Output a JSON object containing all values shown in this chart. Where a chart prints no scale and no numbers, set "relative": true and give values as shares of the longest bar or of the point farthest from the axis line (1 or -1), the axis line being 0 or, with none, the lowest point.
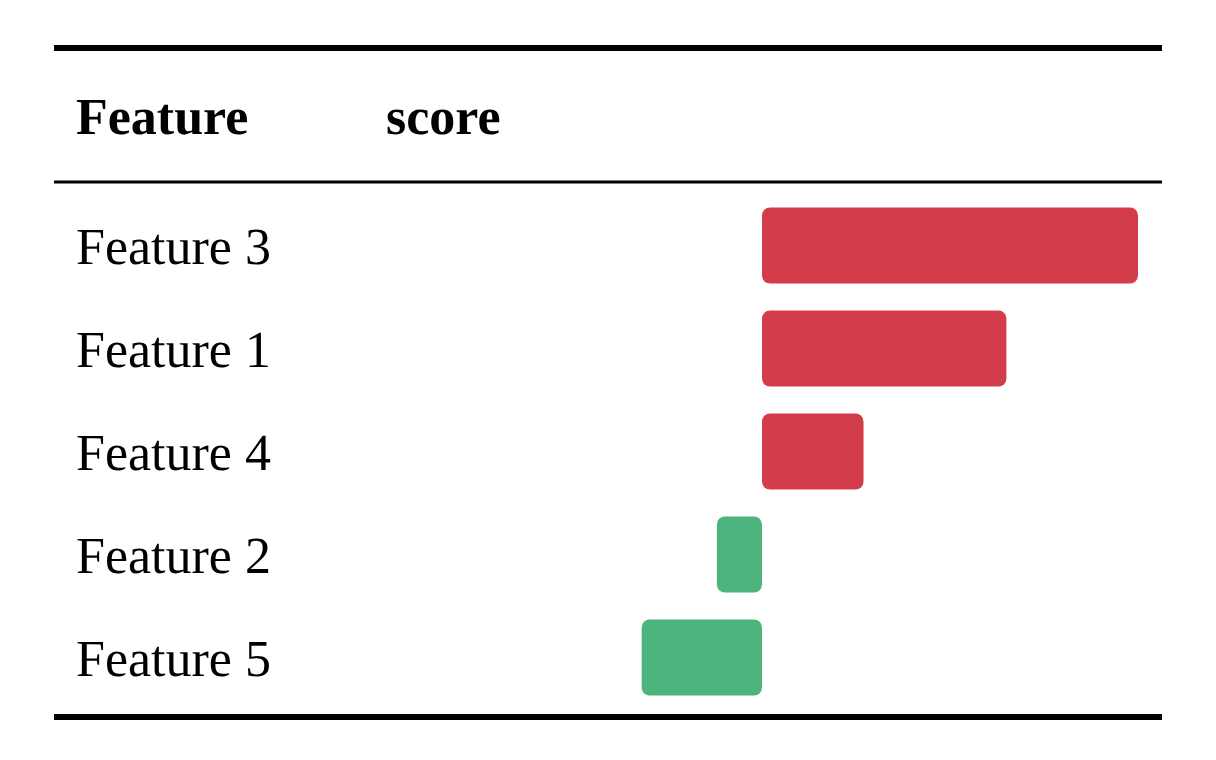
{
  "chart_data": {
    "type": "bar",
    "orientation": "horizontal",
    "relative": true,
    "ylabel": "Feature",
    "xlabel": "score",
    "categories": [
      "Feature 3",
      "Feature 1",
      "Feature 4",
      "Feature 2",
      "Feature 5"
    ],
    "values": [
      1,
      0.65,
      0.27,
      -0.12,
      -0.32
    ],
    "colors": [
      "#d33c4a",
      "#d33c4a",
      "#d33c4a",
      "#4cb47c",
      "#4cb47c"
    ]
  }
}
